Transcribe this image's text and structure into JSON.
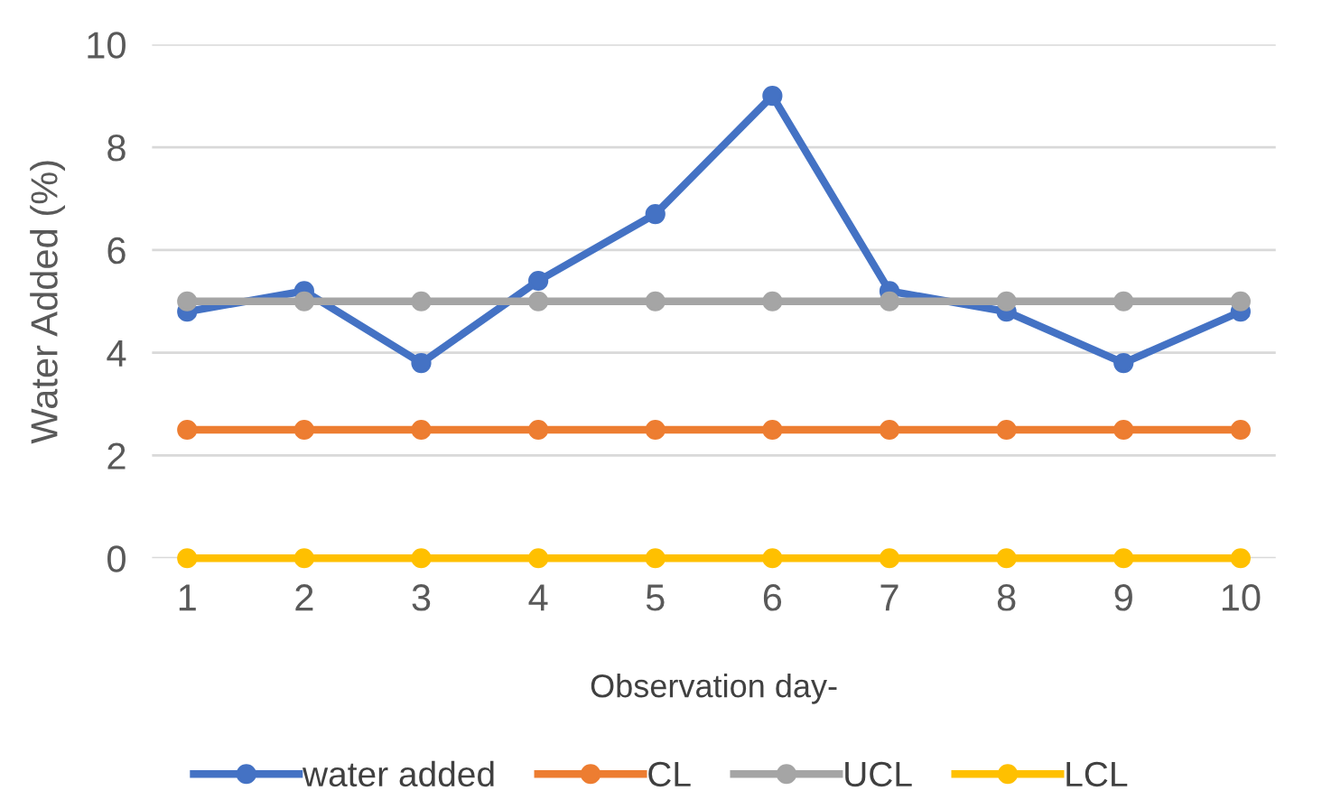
{
  "chart_data": {
    "type": "line",
    "xlabel": "Observation day-",
    "ylabel": "Water Added (%)",
    "categories": [
      "1",
      "2",
      "3",
      "4",
      "5",
      "6",
      "7",
      "8",
      "9",
      "10"
    ],
    "series": [
      {
        "name": "water added",
        "color": "#4472c4",
        "values": [
          4.8,
          5.2,
          3.8,
          5.4,
          6.7,
          9.0,
          5.2,
          4.8,
          3.8,
          4.8
        ]
      },
      {
        "name": "CL",
        "color": "#ed7d31",
        "values": [
          2.5,
          2.5,
          2.5,
          2.5,
          2.5,
          2.5,
          2.5,
          2.5,
          2.5,
          2.5
        ]
      },
      {
        "name": "UCL",
        "color": "#a5a5a5",
        "values": [
          5,
          5,
          5,
          5,
          5,
          5,
          5,
          5,
          5,
          5
        ]
      },
      {
        "name": "LCL",
        "color": "#ffc000",
        "values": [
          0,
          0,
          0,
          0,
          0,
          0,
          0,
          0,
          0,
          0
        ]
      }
    ],
    "ylim": [
      0,
      10
    ],
    "yticks": [
      0,
      2,
      4,
      6,
      8,
      10
    ],
    "grid": "y",
    "legend": "bottom",
    "marker": "circle",
    "line_style": "solid"
  }
}
